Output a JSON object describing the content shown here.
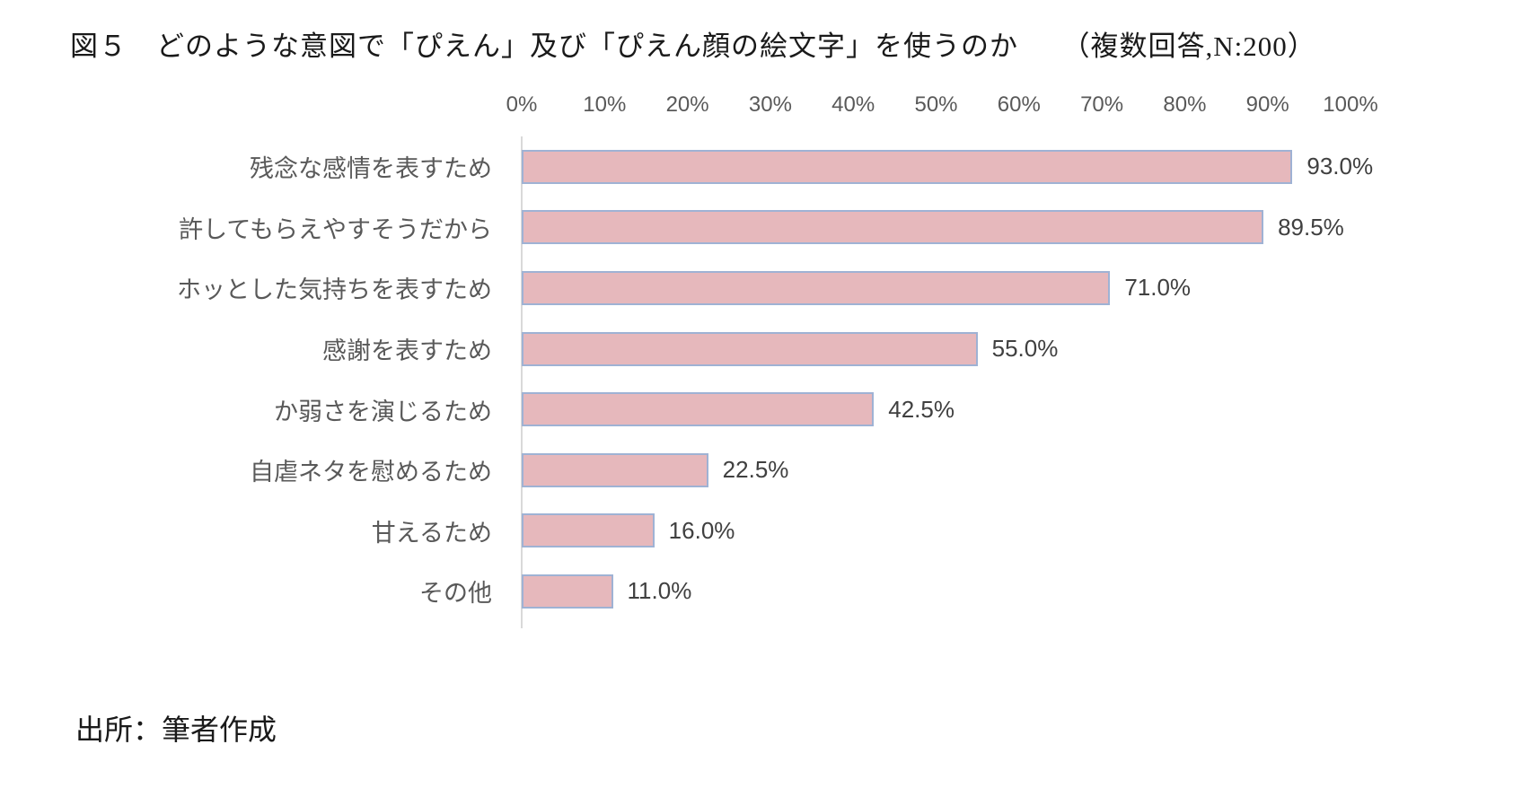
{
  "figure": {
    "title": "図５　どのような意図で「ぴえん」及び「ぴえん顔の絵文字」を使うのか　　（複数回答,N:200）",
    "source_note": "出所：筆者作成"
  },
  "chart_data": {
    "type": "bar",
    "orientation": "horizontal",
    "title": "どのような意図で「ぴえん」及び「ぴえん顔の絵文字」を使うのか",
    "subtitle": "（複数回答,N:200）",
    "categories": [
      "残念な感情を表すため",
      "許してもらえやすそうだから",
      "ホッとした気持ちを表すため",
      "感謝を表すため",
      "か弱さを演じるため",
      "自虐ネタを慰めるため",
      "甘えるため",
      "その他"
    ],
    "values": [
      93.0,
      89.5,
      71.0,
      55.0,
      42.5,
      22.5,
      16.0,
      11.0
    ],
    "value_labels": [
      "93.0%",
      "89.5%",
      "71.0%",
      "55.0%",
      "42.5%",
      "22.5%",
      "16.0%",
      "11.0%"
    ],
    "x_tick_labels": [
      "0%",
      "10%",
      "20%",
      "30%",
      "40%",
      "50%",
      "60%",
      "70%",
      "80%",
      "90%",
      "100%"
    ],
    "xlim": [
      0,
      100
    ],
    "grid": false,
    "legend_position": "none",
    "colors": {
      "bar_fill": "#e6b8bc",
      "bar_border": "#9fb2d4",
      "axis_line": "#d9d9d9",
      "category_label": "#595959",
      "tick_label": "#595959",
      "value_label": "#404040"
    }
  }
}
